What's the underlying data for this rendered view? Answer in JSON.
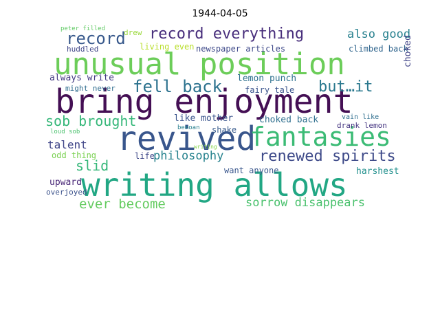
{
  "title": "1944-04-05",
  "words": [
    {
      "text": "unusual position",
      "color": "#6ccd59"
    },
    {
      "text": "bring enjoyment",
      "color": "#440f54"
    },
    {
      "text": "revived",
      "color": "#39568c"
    },
    {
      "text": "fantasies",
      "color": "#3bbb75"
    },
    {
      "text": "writing allows",
      "color": "#22a784"
    },
    {
      "text": "record everything",
      "color": "#472d7b"
    },
    {
      "text": "record",
      "color": "#38598c"
    },
    {
      "text": "fell back",
      "color": "#2c728e"
    },
    {
      "text": "but…it",
      "color": "#2a788e"
    },
    {
      "text": "renewed spirits",
      "color": "#3e4a89"
    },
    {
      "text": "sob brought",
      "color": "#35b779"
    },
    {
      "text": "also good",
      "color": "#27808e"
    },
    {
      "text": "ever become",
      "color": "#63cb5f"
    },
    {
      "text": "sorrow disappears",
      "color": "#4ac16d"
    },
    {
      "text": "philosophy",
      "color": "#26828e"
    },
    {
      "text": "talent",
      "color": "#404688"
    },
    {
      "text": "slid",
      "color": "#35b779"
    },
    {
      "text": "newspaper articles",
      "color": "#3e4989"
    },
    {
      "text": "lemon punch",
      "color": "#2d708e"
    },
    {
      "text": "climbed back",
      "color": "#31668e"
    },
    {
      "text": "always write",
      "color": "#443a83"
    },
    {
      "text": "might never",
      "color": "#2f6c8e"
    },
    {
      "text": "fairy tale",
      "color": "#3a548c"
    },
    {
      "text": "choked back",
      "color": "#2e6f8e"
    },
    {
      "text": "choked",
      "color": "#404387"
    },
    {
      "text": "like mother",
      "color": "#3a548c"
    },
    {
      "text": "harshest",
      "color": "#21908d"
    },
    {
      "text": "odd thing",
      "color": "#7ad151"
    },
    {
      "text": "life",
      "color": "#3f4889"
    },
    {
      "text": "shake",
      "color": "#375a8c"
    },
    {
      "text": "vain like",
      "color": "#2e6e8e"
    },
    {
      "text": "drank lemon",
      "color": "#453581"
    },
    {
      "text": "upward",
      "color": "#482677"
    },
    {
      "text": "want anyone",
      "color": "#39568c"
    },
    {
      "text": "overjoyed",
      "color": "#3b528b"
    },
    {
      "text": "huddled",
      "color": "#404688"
    },
    {
      "text": "living even",
      "color": "#b8de29"
    },
    {
      "text": "drew",
      "color": "#9bd93c"
    },
    {
      "text": "peter filled",
      "color": "#5ec962"
    },
    {
      "text": "loud sob",
      "color": "#4ac16d"
    },
    {
      "text": "bemoan",
      "color": "#277f8e"
    },
    {
      "text": "writing",
      "color": "#86d549"
    }
  ]
}
